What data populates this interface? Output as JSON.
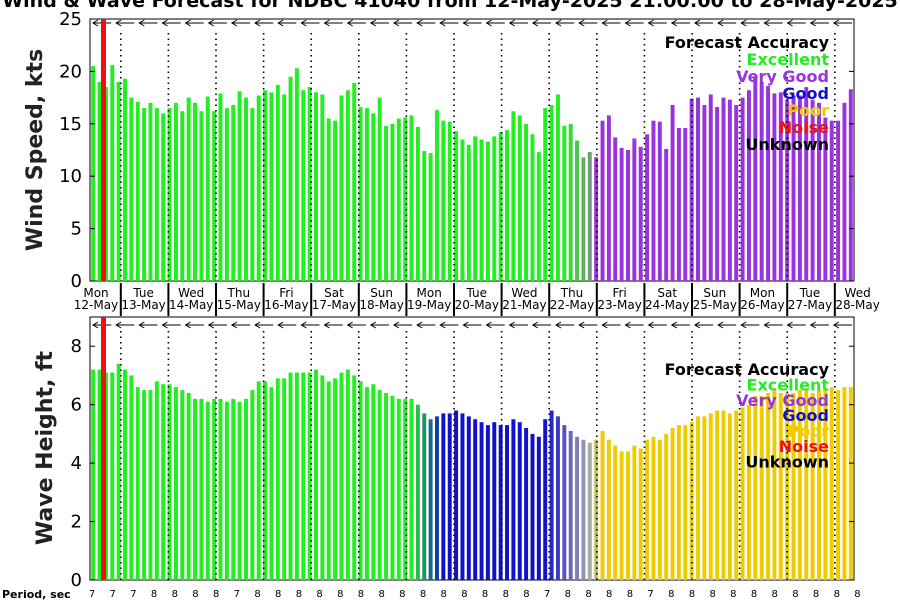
{
  "chart_data": {
    "type": "bar",
    "title": "Wind & Wave Forecast for NDBC 41040 from 12-May-2025 21:00:00 to 28-May-2025",
    "colors": {
      "Excellent": "#22ee22",
      "Very Good": "#9933dd",
      "Good": "#1111cc",
      "Poor": "#eecc00",
      "Noise": "#ee1111",
      "Unknown": "#000000"
    },
    "legend": {
      "title": "Forecast Accuracy",
      "position": "top-right",
      "entries": [
        "Excellent",
        "Very Good",
        "Good",
        "Poor",
        "Noise",
        "Unknown"
      ]
    },
    "x_axis": {
      "days": [
        "Mon",
        "Tue",
        "Wed",
        "Thu",
        "Fri",
        "Sat",
        "Sun",
        "Mon",
        "Tue",
        "Wed",
        "Thu",
        "Fri",
        "Sat",
        "Sun",
        "Mon",
        "Tue",
        "Wed"
      ],
      "dates": [
        "12-May",
        "13-May",
        "14-May",
        "15-May",
        "16-May",
        "17-May",
        "18-May",
        "19-May",
        "20-May",
        "21-May",
        "22-May",
        "23-May",
        "24-May",
        "25-May",
        "26-May",
        "27-May",
        "28-May"
      ],
      "period_label": "Period, sec",
      "periods": [
        "7",
        "7",
        "7",
        "8",
        "8",
        "8",
        "8",
        "7",
        "8",
        "8",
        "8",
        "8",
        "8",
        "8",
        "8",
        "8",
        "8",
        "8",
        "8",
        "8",
        "8",
        "8",
        "7",
        "8",
        "8",
        "8",
        "8",
        "7",
        "8",
        "8",
        "8",
        "8",
        "8",
        "8",
        "8",
        "8",
        "8",
        "8"
      ]
    },
    "wind": {
      "ylabel": "Wind Speed, kts",
      "ylim": [
        0,
        25
      ],
      "yticks": [
        0,
        5,
        10,
        15,
        20,
        25
      ],
      "values": [
        20.5,
        19.0,
        18.5,
        20.6,
        19.0,
        19.3,
        17.5,
        17.1,
        16.5,
        17.0,
        16.5,
        16.0,
        16.5,
        17.0,
        16.2,
        17.5,
        17.0,
        16.2,
        17.6,
        16.2,
        17.9,
        16.5,
        16.8,
        18.1,
        17.5,
        16.5,
        17.7,
        18.2,
        18.0,
        18.7,
        17.8,
        19.5,
        20.3,
        18.2,
        18.5,
        18.0,
        17.8,
        15.5,
        15.3,
        17.7,
        18.2,
        18.9,
        16.6,
        16.5,
        16.0,
        17.5,
        14.8,
        15.0,
        15.5,
        15.6,
        15.8,
        14.7,
        12.4,
        12.2,
        16.3,
        15.3,
        15.2,
        14.3,
        13.5,
        13.0,
        13.8,
        13.5,
        13.3,
        13.8,
        14.2,
        14.4,
        16.2,
        15.8,
        15.0,
        14.0,
        12.3,
        16.5,
        16.8,
        17.8,
        14.8,
        15.0,
        13.4,
        11.8,
        12.3,
        11.8,
        15.3,
        15.8,
        13.7,
        12.7,
        12.5,
        13.6,
        12.8,
        14.0,
        15.3,
        15.2,
        12.6,
        16.8,
        14.6,
        14.6,
        17.4,
        17.5,
        16.8,
        17.8,
        16.6,
        17.5,
        17.3,
        16.8,
        17.5,
        18.2,
        19.5,
        19.0,
        18.6,
        17.9,
        18.0,
        17.3,
        17.7,
        17.7,
        18.5,
        17.3,
        17.0,
        15.6,
        15.3,
        15.3,
        17.0,
        18.3
      ]
    },
    "wave": {
      "ylabel": "Wave Height, ft",
      "ylim": [
        0,
        9
      ],
      "yticks": [
        0,
        2,
        4,
        6,
        8
      ],
      "values": [
        7.2,
        7.2,
        7.1,
        7.1,
        7.4,
        7.2,
        7.0,
        6.6,
        6.5,
        6.5,
        6.8,
        6.7,
        6.7,
        6.6,
        6.5,
        6.4,
        6.2,
        6.2,
        6.1,
        6.2,
        6.2,
        6.1,
        6.2,
        6.1,
        6.2,
        6.5,
        6.8,
        6.8,
        6.6,
        6.9,
        6.9,
        7.1,
        7.1,
        7.1,
        7.1,
        7.2,
        7.0,
        6.8,
        6.9,
        7.1,
        7.2,
        7.0,
        6.8,
        6.6,
        6.7,
        6.5,
        6.4,
        6.3,
        6.2,
        6.2,
        6.2,
        6.0,
        5.7,
        5.5,
        5.6,
        5.7,
        5.7,
        5.8,
        5.7,
        5.6,
        5.5,
        5.4,
        5.3,
        5.4,
        5.3,
        5.3,
        5.5,
        5.4,
        5.2,
        5.0,
        4.9,
        5.5,
        5.8,
        5.6,
        5.3,
        5.1,
        4.9,
        4.8,
        4.7,
        4.8,
        5.1,
        4.8,
        4.6,
        4.4,
        4.4,
        4.6,
        4.5,
        4.8,
        4.9,
        4.8,
        5.0,
        5.2,
        5.3,
        5.3,
        5.4,
        5.6,
        5.6,
        5.7,
        5.8,
        5.8,
        5.7,
        5.8,
        5.9,
        6.0,
        6.3,
        6.3,
        6.4,
        6.5,
        6.4,
        6.4,
        6.4,
        6.5,
        6.5,
        6.4,
        6.5,
        6.5,
        6.6,
        6.5,
        6.6,
        6.6
      ]
    }
  }
}
